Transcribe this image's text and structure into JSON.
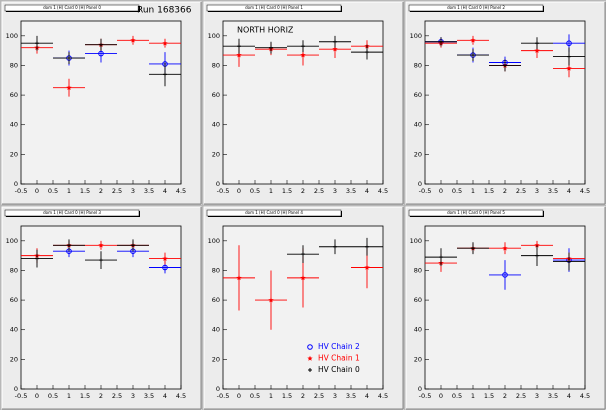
{
  "chart_data": [
    {
      "type": "scatter",
      "title": "dom 1 (H) Card 0 (H) Panel 0",
      "annotation": "Run 168366",
      "x": [
        0,
        1,
        2,
        3,
        4
      ],
      "xerror": 0.5,
      "xlim": [
        -0.5,
        4.5
      ],
      "xticks": [
        -0.5,
        0,
        0.5,
        1,
        1.5,
        2,
        2.5,
        3,
        3.5,
        4,
        4.5
      ],
      "ylim": [
        0,
        110
      ],
      "yticks": [
        0,
        20,
        40,
        60,
        80,
        100
      ],
      "series": [
        {
          "color": "#0000ff",
          "marker": "circle",
          "values": [
            null,
            85,
            88,
            null,
            81
          ],
          "errors": [
            null,
            5,
            6,
            null,
            8
          ]
        },
        {
          "color": "#ff0000",
          "marker": "star",
          "values": [
            92,
            65,
            94,
            97,
            95
          ],
          "errors": [
            4,
            6,
            4,
            3,
            3
          ]
        },
        {
          "color": "#000000",
          "marker": "plus",
          "values": [
            95,
            85,
            94,
            null,
            74
          ],
          "errors": [
            5,
            4,
            4,
            null,
            8
          ]
        }
      ]
    },
    {
      "type": "scatter",
      "title": "dom 1 (H) Card 0 (H) Panel 1",
      "annotation": "NORTH HORIZ",
      "x": [
        0,
        1,
        2,
        3,
        4
      ],
      "xerror": 0.5,
      "xlim": [
        -0.5,
        4.5
      ],
      "xticks": [
        -0.5,
        0,
        0.5,
        1,
        1.5,
        2,
        2.5,
        3,
        3.5,
        4,
        4.5
      ],
      "ylim": [
        0,
        110
      ],
      "yticks": [
        0,
        20,
        40,
        60,
        80,
        100
      ],
      "series": [
        {
          "color": "#0000ff",
          "marker": "circle",
          "values": [
            null,
            null,
            null,
            null,
            null
          ],
          "errors": [
            null,
            null,
            null,
            null,
            null
          ]
        },
        {
          "color": "#ff0000",
          "marker": "star",
          "values": [
            87,
            91,
            87,
            91,
            93
          ],
          "errors": [
            8,
            4,
            7,
            6,
            4
          ]
        },
        {
          "color": "#000000",
          "marker": "plus",
          "values": [
            93,
            92,
            93,
            96,
            89
          ],
          "errors": [
            5,
            4,
            4,
            4,
            5
          ]
        }
      ]
    },
    {
      "type": "scatter",
      "title": "dom 1 (H) Card 0 (H) Panel 2",
      "x": [
        0,
        1,
        2,
        3,
        4
      ],
      "xerror": 0.5,
      "xlim": [
        -0.5,
        4.5
      ],
      "xticks": [
        -0.5,
        0,
        0.5,
        1,
        1.5,
        2,
        2.5,
        3,
        3.5,
        4,
        4.5
      ],
      "ylim": [
        0,
        110
      ],
      "yticks": [
        0,
        20,
        40,
        60,
        80,
        100
      ],
      "series": [
        {
          "color": "#0000ff",
          "marker": "circle",
          "values": [
            96,
            87,
            82,
            null,
            95
          ],
          "errors": [
            3,
            5,
            4,
            null,
            6
          ]
        },
        {
          "color": "#ff0000",
          "marker": "star",
          "values": [
            95,
            97,
            80,
            90,
            78
          ],
          "errors": [
            3,
            3,
            4,
            5,
            6
          ]
        },
        {
          "color": "#000000",
          "marker": "plus",
          "values": [
            96,
            87,
            80,
            95,
            86
          ],
          "errors": [
            3,
            4,
            4,
            4,
            6
          ]
        }
      ]
    },
    {
      "type": "scatter",
      "title": "dom 1 (H) Card 0 (H) Panel 3",
      "x": [
        0,
        1,
        2,
        3,
        4
      ],
      "xerror": 0.5,
      "xlim": [
        -0.5,
        4.5
      ],
      "xticks": [
        -0.5,
        0,
        0.5,
        1,
        1.5,
        2,
        2.5,
        3,
        3.5,
        4,
        4.5
      ],
      "ylim": [
        0,
        110
      ],
      "yticks": [
        0,
        20,
        40,
        60,
        80,
        100
      ],
      "series": [
        {
          "color": "#0000ff",
          "marker": "circle",
          "values": [
            null,
            93,
            null,
            93,
            82
          ],
          "errors": [
            null,
            4,
            null,
            4,
            4
          ]
        },
        {
          "color": "#ff0000",
          "marker": "star",
          "values": [
            90,
            97,
            97,
            97,
            88
          ],
          "errors": [
            5,
            3,
            3,
            3,
            4
          ]
        },
        {
          "color": "#000000",
          "marker": "plus",
          "values": [
            88,
            97,
            87,
            97,
            null
          ],
          "errors": [
            6,
            4,
            6,
            4,
            null
          ]
        }
      ]
    },
    {
      "type": "scatter",
      "title": "dom 1 (H) Card 0 (H) Panel 4",
      "legend": "bottom-right",
      "x": [
        0,
        1,
        2,
        3,
        4
      ],
      "xerror": 0.5,
      "xlim": [
        -0.5,
        4.5
      ],
      "xticks": [
        -0.5,
        0,
        0.5,
        1,
        1.5,
        2,
        2.5,
        3,
        3.5,
        4,
        4.5
      ],
      "ylim": [
        0,
        110
      ],
      "yticks": [
        0,
        20,
        40,
        60,
        80,
        100
      ],
      "series": [
        {
          "name": "HV Chain 2",
          "color": "#0000ff",
          "marker": "circle",
          "values": [
            null,
            null,
            null,
            null,
            null
          ],
          "errors": [
            null,
            null,
            null,
            null,
            null
          ]
        },
        {
          "name": "HV Chain 1",
          "color": "#ff0000",
          "marker": "star",
          "values": [
            75,
            60,
            75,
            null,
            82
          ],
          "errors": [
            22,
            20,
            20,
            null,
            14
          ]
        },
        {
          "name": "HV Chain 0",
          "color": "#000000",
          "marker": "plus",
          "values": [
            null,
            null,
            91,
            96,
            96
          ],
          "errors": [
            null,
            null,
            6,
            5,
            6
          ]
        }
      ]
    },
    {
      "type": "scatter",
      "title": "dom 1 (H) Card 0 (H) Panel 5",
      "x": [
        0,
        1,
        2,
        3,
        4
      ],
      "xerror": 0.5,
      "xlim": [
        -0.5,
        4.5
      ],
      "xticks": [
        -0.5,
        0,
        0.5,
        1,
        1.5,
        2,
        2.5,
        3,
        3.5,
        4,
        4.5
      ],
      "ylim": [
        0,
        110
      ],
      "yticks": [
        0,
        20,
        40,
        60,
        80,
        100
      ],
      "series": [
        {
          "color": "#0000ff",
          "marker": "circle",
          "values": [
            null,
            null,
            77,
            null,
            87
          ],
          "errors": [
            null,
            null,
            10,
            null,
            8
          ]
        },
        {
          "color": "#ff0000",
          "marker": "star",
          "values": [
            85,
            95,
            95,
            97,
            88
          ],
          "errors": [
            6,
            3,
            4,
            3,
            4
          ]
        },
        {
          "color": "#000000",
          "marker": "plus",
          "values": [
            89,
            95,
            null,
            90,
            86
          ],
          "errors": [
            6,
            4,
            null,
            7,
            6
          ]
        }
      ]
    }
  ]
}
